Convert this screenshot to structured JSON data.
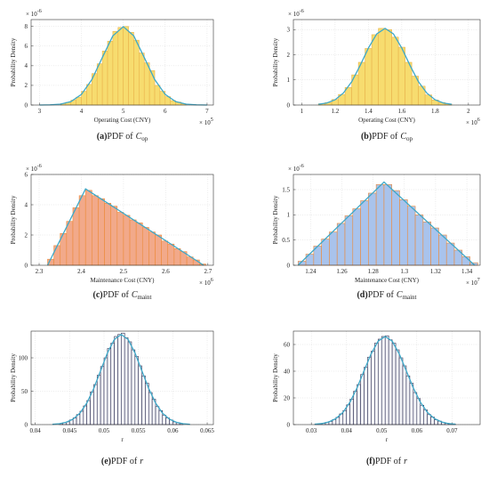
{
  "chart_data": [
    {
      "type": "histogram",
      "ylabel": "Probability Density",
      "xlabel": "Operating Cost (CNY)",
      "y_multiplier": "× 10",
      "y_exponent": "-6",
      "x_multiplier": "× 10",
      "x_exponent": "5",
      "caption_label": "(a)",
      "caption_text": "PDF of",
      "caption_symbol": "C",
      "caption_subscript": "op",
      "bins": [
        3.5,
        3.625,
        3.75,
        3.875,
        4,
        4.125,
        4.25,
        4.375,
        4.5,
        4.625,
        4.75,
        4.875,
        5,
        5.125,
        5.25,
        5.375,
        5.5,
        5.625,
        5.75,
        5.875,
        6,
        6.125,
        6.25,
        6.375,
        6.5
      ],
      "values": [
        0.15,
        0.27,
        0.5,
        0.8,
        1.4,
        2.1,
        3.2,
        4.2,
        5.5,
        6.5,
        7.5,
        7.9,
        8.0,
        7.4,
        6.6,
        5.3,
        4.3,
        3.5,
        2.0,
        1.4,
        0.85,
        0.45,
        0.3,
        0.12
      ],
      "color": "#f7dc6f",
      "edgecolor": "#e9b44c",
      "fit": {
        "x": [
          3,
          3.25,
          3.5,
          3.75,
          4,
          4.25,
          4.5,
          4.75,
          5,
          5.25,
          5.5,
          5.75,
          6,
          6.25,
          6.5,
          6.75,
          7
        ],
        "values": [
          0,
          0.02,
          0.09,
          0.35,
          1.08,
          2.59,
          4.84,
          7.04,
          7.98,
          7.04,
          4.84,
          2.59,
          1.08,
          0.35,
          0.09,
          0.02,
          0
        ],
        "color": "#3ea8c8"
      },
      "xlim": [
        2.8,
        7.15
      ],
      "ylim": [
        0,
        8.7
      ],
      "xticks": [
        3,
        4,
        5,
        6,
        7
      ],
      "yticks": [
        0,
        2,
        4,
        6,
        8
      ],
      "grid": true
    },
    {
      "type": "histogram",
      "ylabel": "Probability Density",
      "xlabel": "Operating Cost (CNY)",
      "y_multiplier": "× 10",
      "y_exponent": "-6",
      "x_multiplier": "× 10",
      "x_exponent": "6",
      "caption_label": "(b)",
      "caption_text": "PDF of",
      "caption_symbol": "C",
      "caption_subscript": "op",
      "bins": [
        1.1,
        1.14,
        1.18,
        1.22,
        1.26,
        1.3,
        1.34,
        1.38,
        1.42,
        1.46,
        1.5,
        1.54,
        1.58,
        1.62,
        1.66,
        1.7,
        1.74,
        1.78,
        1.82,
        1.86,
        1.9
      ],
      "values": [
        0.05,
        0.1,
        0.22,
        0.42,
        0.7,
        1.2,
        1.7,
        2.25,
        2.8,
        3.05,
        3.0,
        2.7,
        2.3,
        1.7,
        1.15,
        0.75,
        0.4,
        0.2,
        0.1,
        0.04
      ],
      "color": "#f7dc6f",
      "edgecolor": "#e9b44c",
      "fit": {
        "x": [
          1.1,
          1.15,
          1.2,
          1.25,
          1.3,
          1.35,
          1.4,
          1.45,
          1.5,
          1.55,
          1.6,
          1.65,
          1.7,
          1.75,
          1.8,
          1.85,
          1.9
        ],
        "values": [
          0.03,
          0.08,
          0.21,
          0.48,
          0.93,
          1.57,
          2.27,
          2.83,
          3.05,
          2.83,
          2.27,
          1.57,
          0.93,
          0.48,
          0.21,
          0.08,
          0.03
        ],
        "color": "#3ea8c8"
      },
      "xlim": [
        0.95,
        2.07
      ],
      "ylim": [
        0,
        3.4
      ],
      "xticks": [
        1,
        1.2,
        1.4,
        1.6,
        1.8,
        2
      ],
      "yticks": [
        0,
        1,
        2,
        3
      ],
      "grid": true
    },
    {
      "type": "histogram",
      "ylabel": "Probability Density",
      "xlabel": "Maintenance Cost (CNY)",
      "y_multiplier": "× 10",
      "y_exponent": "-6",
      "x_multiplier": "× 10",
      "x_exponent": "6",
      "caption_label": "(c)",
      "caption_text": "PDF of",
      "caption_symbol": "C",
      "caption_subscript": "maint",
      "bins": [
        2.32,
        2.335,
        2.35,
        2.365,
        2.38,
        2.395,
        2.41,
        2.425,
        2.44,
        2.455,
        2.47,
        2.485,
        2.5,
        2.515,
        2.53,
        2.545,
        2.56,
        2.575,
        2.59,
        2.605,
        2.62,
        2.635,
        2.65,
        2.665,
        2.68,
        2.695
      ],
      "values": [
        0.4,
        1.3,
        2.1,
        2.9,
        3.8,
        4.6,
        4.95,
        4.6,
        4.4,
        4.1,
        3.9,
        3.5,
        3.3,
        3.0,
        2.8,
        2.5,
        2.2,
        2.0,
        1.6,
        1.4,
        1.1,
        0.9,
        0.55,
        0.35,
        0.08
      ],
      "color": "#f2a98a",
      "edgecolor": "#ec8a3a",
      "fit": {
        "x": [
          2.32,
          2.41,
          2.69
        ],
        "values": [
          0,
          5.05,
          0
        ],
        "color": "#3ea8c8"
      },
      "xlim": [
        2.281,
        2.713
      ],
      "ylim": [
        0,
        6
      ],
      "xticks": [
        2.3,
        2.4,
        2.5,
        2.6,
        2.7
      ],
      "yticks": [
        0,
        2,
        4,
        6
      ],
      "grid": true
    },
    {
      "type": "histogram",
      "ylabel": "Probability Density",
      "xlabel": "Maintenance Cost (CNY)",
      "y_multiplier": "× 10",
      "y_exponent": "-6",
      "x_multiplier": "× 10",
      "x_exponent": "7",
      "caption_label": "(d)",
      "caption_text": "PDF of",
      "caption_symbol": "C",
      "caption_subscript": "maint",
      "bins": [
        1.232,
        1.237,
        1.242,
        1.247,
        1.252,
        1.257,
        1.262,
        1.267,
        1.272,
        1.277,
        1.282,
        1.287,
        1.292,
        1.297,
        1.302,
        1.307,
        1.312,
        1.317,
        1.322,
        1.327,
        1.332,
        1.337,
        1.342,
        1.347
      ],
      "values": [
        0.08,
        0.22,
        0.38,
        0.52,
        0.66,
        0.83,
        0.98,
        1.12,
        1.28,
        1.43,
        1.6,
        1.6,
        1.48,
        1.3,
        1.17,
        1.0,
        0.86,
        0.74,
        0.6,
        0.44,
        0.3,
        0.17,
        0.05
      ],
      "color": "#a9c3ec",
      "edgecolor": "#ec8a3a",
      "fit": {
        "x": [
          1.232,
          1.287,
          1.345
        ],
        "values": [
          0,
          1.65,
          0
        ],
        "color": "#3ea8c8"
      },
      "xlim": [
        1.229,
        1.3485
      ],
      "ylim": [
        0,
        1.8
      ],
      "xticks": [
        1.24,
        1.26,
        1.28,
        1.3,
        1.32,
        1.34
      ],
      "yticks": [
        0,
        0.5,
        1,
        1.5
      ],
      "grid": true
    },
    {
      "type": "histogram",
      "ylabel": "Probability Density",
      "xlabel": "r",
      "caption_label": "(e)",
      "caption_text": "PDF of",
      "caption_symbol": "r",
      "bins": [
        0.0435,
        0.044,
        0.0445,
        0.045,
        0.0455,
        0.046,
        0.0465,
        0.047,
        0.0475,
        0.048,
        0.0485,
        0.049,
        0.0495,
        0.05,
        0.0505,
        0.051,
        0.0515,
        0.052,
        0.0525,
        0.053,
        0.0535,
        0.054,
        0.0545,
        0.055,
        0.0555,
        0.056,
        0.0565,
        0.057,
        0.0575,
        0.058,
        0.0585,
        0.059,
        0.0595,
        0.06,
        0.0605,
        0.061,
        0.0615
      ],
      "values": [
        1.5,
        3,
        4,
        7,
        10,
        15,
        20,
        28,
        36,
        49,
        60,
        74,
        87,
        100,
        114,
        122,
        132,
        135,
        137,
        130,
        124,
        112,
        102,
        88,
        73,
        62,
        48,
        38,
        27,
        21,
        14,
        10,
        7,
        4,
        3,
        1.5
      ],
      "color": "#f4f4f8",
      "edgecolor": "#2c2e52",
      "fit": {
        "x": [
          0.0425,
          0.0435,
          0.0445,
          0.0455,
          0.0465,
          0.0475,
          0.0485,
          0.0495,
          0.0505,
          0.0515,
          0.0525,
          0.0535,
          0.0545,
          0.0555,
          0.0565,
          0.0575,
          0.0585,
          0.0595,
          0.0605,
          0.0615,
          0.0625
        ],
        "values": [
          0.4,
          1.3,
          3.5,
          8.2,
          17.2,
          32.3,
          54,
          80.7,
          107.4,
          127.5,
          135,
          127.5,
          107.4,
          80.7,
          54,
          32.3,
          17.2,
          8.2,
          3.5,
          1.3,
          0.4
        ],
        "color": "#3ea8c8"
      },
      "xlim": [
        0.0394,
        0.0659
      ],
      "ylim": [
        0,
        140
      ],
      "xticks": [
        0.04,
        0.045,
        0.05,
        0.055,
        0.06,
        0.065
      ],
      "yticks": [
        0,
        50,
        100
      ],
      "grid": true
    },
    {
      "type": "histogram",
      "ylabel": "Probability Density",
      "xlabel": "r",
      "caption_label": "(f)",
      "caption_text": "PDF of",
      "caption_symbol": "r",
      "bins": [
        0.031,
        0.032,
        0.033,
        0.034,
        0.035,
        0.036,
        0.037,
        0.038,
        0.039,
        0.04,
        0.041,
        0.042,
        0.043,
        0.044,
        0.045,
        0.046,
        0.047,
        0.048,
        0.049,
        0.05,
        0.051,
        0.052,
        0.053,
        0.054,
        0.055,
        0.056,
        0.057,
        0.058,
        0.059,
        0.06,
        0.061,
        0.062,
        0.063,
        0.064,
        0.065,
        0.066,
        0.067,
        0.068,
        0.069,
        0.07,
        0.071
      ],
      "values": [
        0.4,
        0.6,
        1,
        1.7,
        2.4,
        3.8,
        5.4,
        8,
        10.5,
        14.8,
        19,
        25,
        30,
        37.5,
        43,
        50.5,
        55,
        61,
        64,
        66,
        66.5,
        63.5,
        61,
        56,
        50,
        44,
        36.5,
        31,
        24,
        19.5,
        14.5,
        11,
        7.5,
        5.6,
        3.6,
        2.6,
        1.6,
        1,
        0.6,
        0.35
      ],
      "color": "#f4f4f8",
      "edgecolor": "#2c2e52",
      "fit": {
        "x": [
          0.031,
          0.033,
          0.035,
          0.037,
          0.039,
          0.041,
          0.043,
          0.045,
          0.047,
          0.049,
          0.051,
          0.053,
          0.055,
          0.057,
          0.059,
          0.061,
          0.063,
          0.065,
          0.067,
          0.069,
          0.071
        ],
        "values": [
          0.28,
          0.78,
          2,
          4.5,
          9.2,
          16.8,
          27.5,
          40.3,
          53,
          62.5,
          66,
          62.5,
          53,
          40.3,
          27.5,
          16.8,
          9.2,
          4.5,
          2,
          0.78,
          0.28
        ],
        "color": "#3ea8c8"
      },
      "xlim": [
        0.0249,
        0.078
      ],
      "ylim": [
        0,
        70
      ],
      "xticks": [
        0.03,
        0.04,
        0.05,
        0.06,
        0.07
      ],
      "yticks": [
        0,
        20,
        40,
        60
      ],
      "grid": true
    }
  ]
}
